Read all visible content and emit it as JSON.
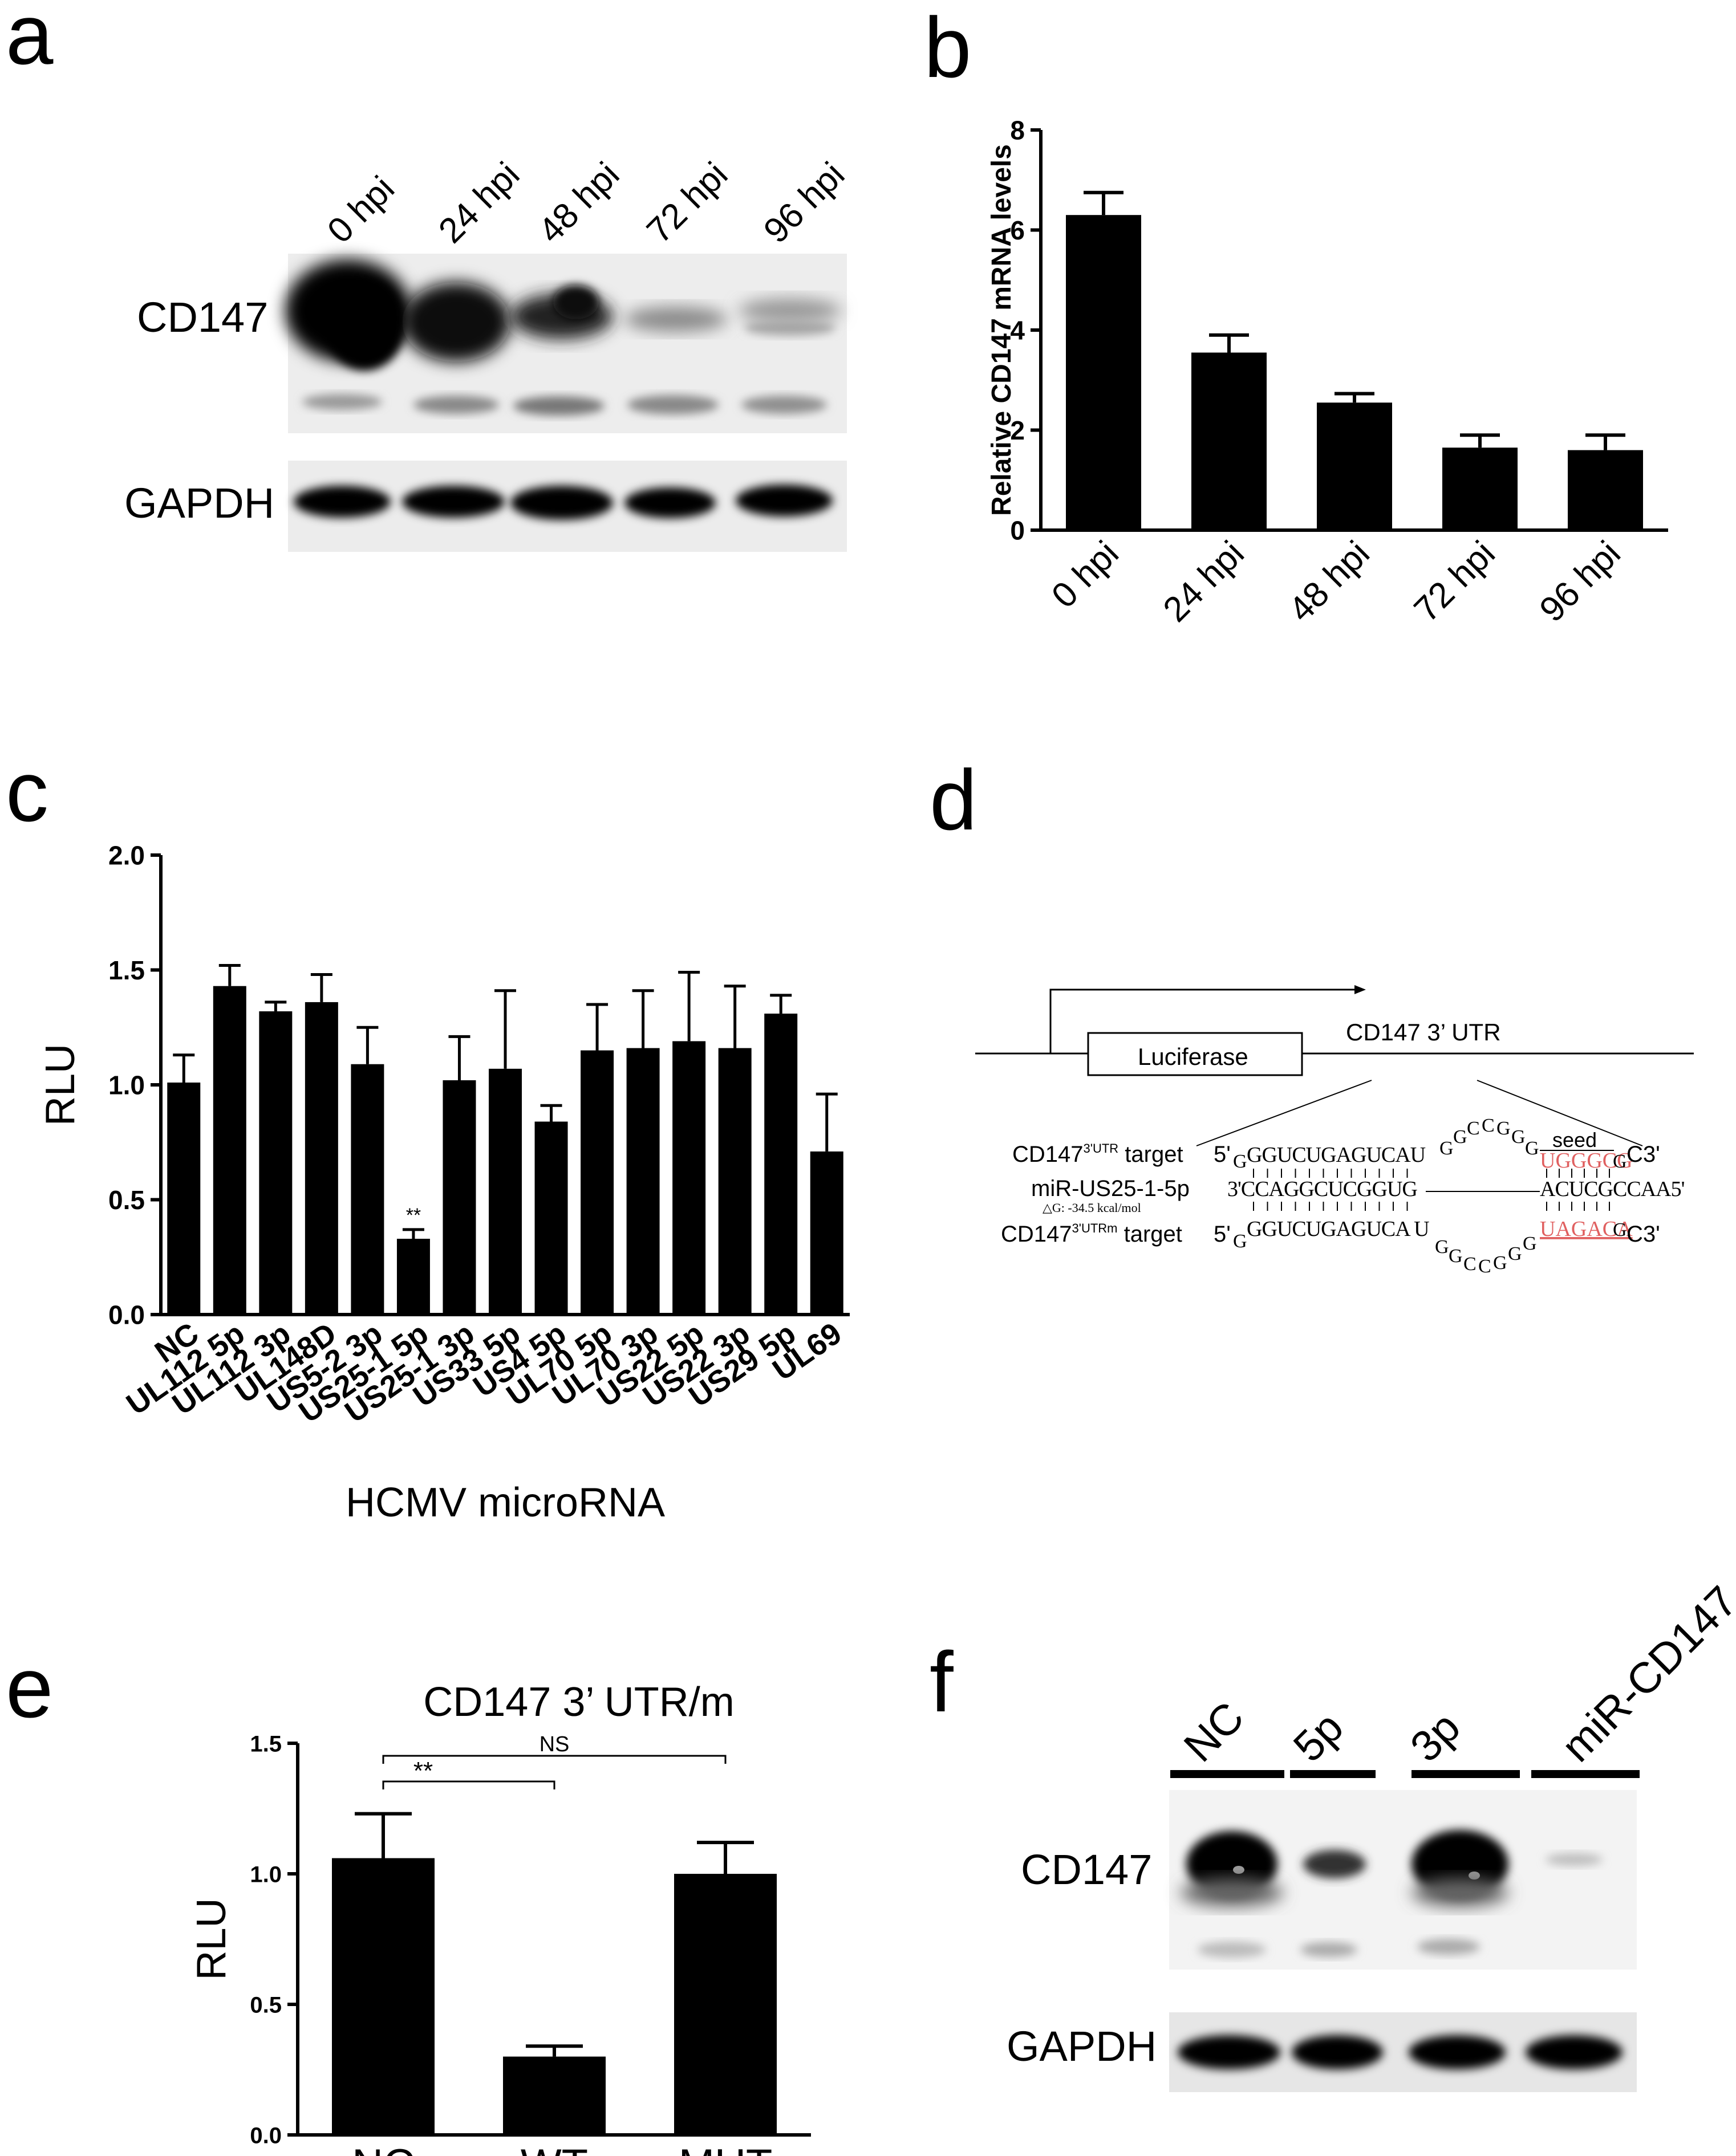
{
  "panels": {
    "a": {
      "letter": "a",
      "lanes": [
        "0 hpi",
        "24 hpi",
        "48 hpi",
        "72 hpi",
        "96 hpi"
      ],
      "rows": [
        "CD147",
        "GAPDH"
      ]
    },
    "b": {
      "letter": "b",
      "chart_data": {
        "type": "bar",
        "categories": [
          "0 hpi",
          "24 hpi",
          "48 hpi",
          "72 hpi",
          "96 hpi"
        ],
        "values": [
          6.3,
          3.55,
          2.55,
          1.65,
          1.6
        ],
        "errors": [
          0.45,
          0.35,
          0.18,
          0.25,
          0.3
        ],
        "ylabel": "Relative CD147 mRNA levels",
        "ylim": [
          0,
          8
        ],
        "yticks": [
          0,
          2,
          4,
          6,
          8
        ]
      }
    },
    "c": {
      "letter": "c",
      "chart_data": {
        "type": "bar",
        "categories": [
          "NC",
          "UL112 5p",
          "UL112 3p",
          "UL148D",
          "US5-2 3p",
          "US25-1 5p",
          "US25-1 3p",
          "US33 5p",
          "US4 5p",
          "UL70 5p",
          "UL70 3p",
          "US22 5p",
          "US22 3p",
          "US29 5p",
          "UL69"
        ],
        "values": [
          1.01,
          1.43,
          1.32,
          1.36,
          1.09,
          0.33,
          1.02,
          1.07,
          0.84,
          1.15,
          1.16,
          1.19,
          1.16,
          1.31,
          0.71
        ],
        "errors": [
          0.12,
          0.09,
          0.04,
          0.12,
          0.16,
          0.04,
          0.19,
          0.34,
          0.07,
          0.2,
          0.25,
          0.3,
          0.27,
          0.08,
          0.25
        ],
        "ylabel": "RLU",
        "xlabel": "HCMV microRNA",
        "ylim": [
          0,
          2
        ],
        "yticks": [
          "0.0",
          "0.5",
          "1.0",
          "1.5",
          "2.0"
        ],
        "annotation": "**"
      }
    },
    "d": {
      "letter": "d",
      "luciferase": "Luciferase",
      "utr": "CD147 3’ UTR",
      "seed": "seed",
      "row1_label_a": "CD147",
      "row1_label_sup": "3'UTR",
      "row1_label_b": " target",
      "row1_5": "5'",
      "row1_G": "G",
      "row1_seq": "GGUCUGAGUCAU",
      "loop_top": [
        "G",
        "G",
        "C",
        "C",
        "G",
        "G",
        "G"
      ],
      "row1_seed": "UGGGCG",
      "row1_end": "G",
      "row1_3": "C3'",
      "row2_label": "miR-US25-1-5p",
      "row2_seq_left": "3'CCAGGCUCGGUG",
      "row2_seq_right": "ACUCGCCAA5'",
      "dg": "△G: -34.5 kcal/mol",
      "row3_label_a": "CD147",
      "row3_label_sup": "3'UTRm",
      "row3_label_b": " target",
      "row3_5": "5'",
      "row3_G": "G",
      "row3_seq": "GGUCUGAGUCA U",
      "loop_bottom": [
        "G",
        "G",
        "C",
        "C",
        "G",
        "G",
        "G"
      ],
      "row3_seed": "UAGACA",
      "row3_end": "G",
      "row3_3": "C3'"
    },
    "e": {
      "letter": "e",
      "chart_data": {
        "type": "bar",
        "title": "CD147 3’ UTR/m",
        "categories": [
          "NC",
          "WT",
          "MUT"
        ],
        "values": [
          1.06,
          0.3,
          1.0
        ],
        "errors": [
          0.17,
          0.04,
          0.12
        ],
        "ylabel": "RLU",
        "ylim": [
          0,
          1.5
        ],
        "yticks": [
          "0.0",
          "0.5",
          "1.0",
          "1.5"
        ],
        "sig": [
          "**",
          "NS"
        ]
      }
    },
    "f": {
      "letter": "f",
      "lanes": [
        "NC",
        "5p",
        "3p",
        "miR-CD147"
      ],
      "rows": [
        "CD147",
        "GAPDH"
      ]
    }
  }
}
